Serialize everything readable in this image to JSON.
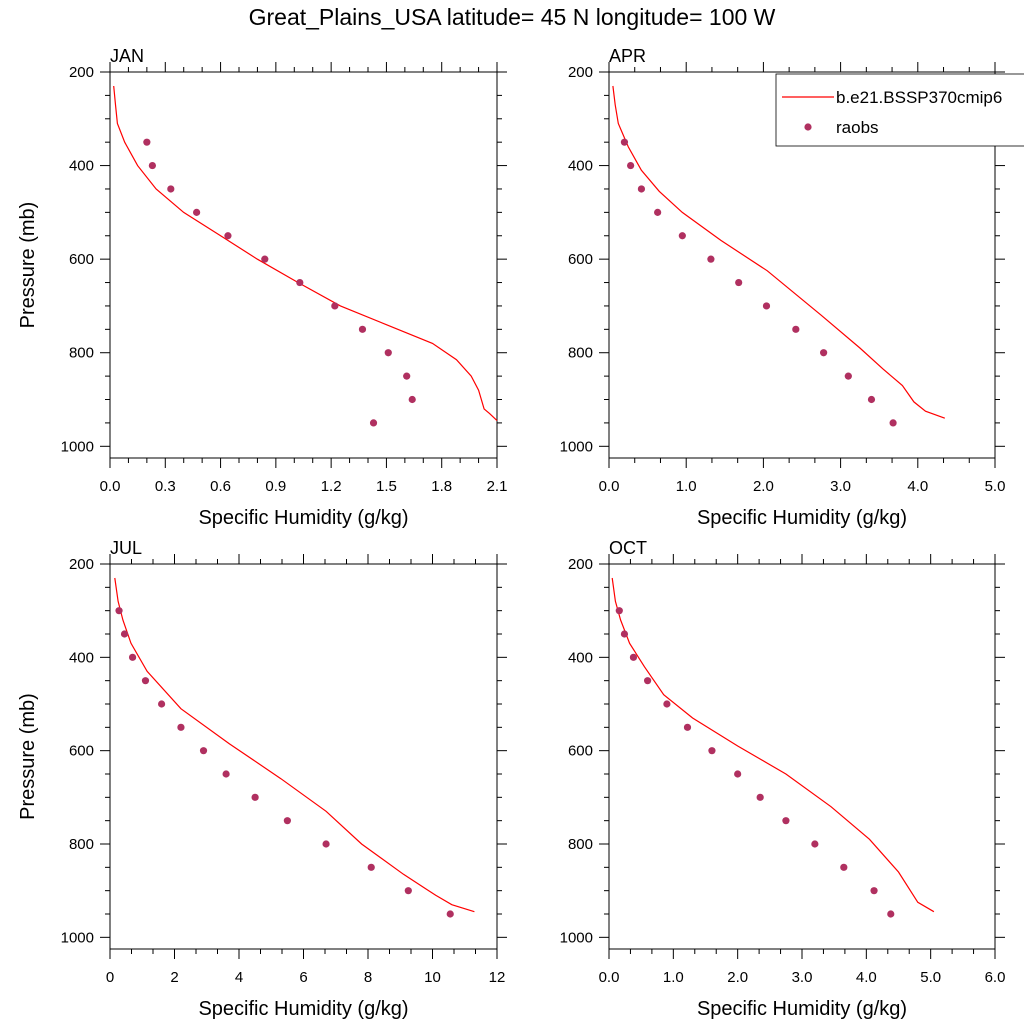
{
  "title": "Great_Plains_USA  latitude= 45 N longitude= 100 W",
  "legend": {
    "model_label": "b.e21.BSSP370cmip6",
    "obs_label": "raobs"
  },
  "colors": {
    "model": "#ff0000",
    "obs": "#b03060"
  },
  "chart_data": [
    {
      "type": "line",
      "panel": "JAN",
      "xlabel": "Specific Humidity (g/kg)",
      "ylabel": "Pressure (mb)",
      "xlim": [
        0,
        2.1
      ],
      "ylim": [
        200,
        1025
      ],
      "y_inverted": true,
      "x_ticks": [
        0,
        0.3,
        0.6,
        0.9,
        1.2,
        1.5,
        1.8,
        2.1
      ],
      "x_tick_labels": [
        "0.0",
        "0.3",
        "0.6",
        "0.9",
        "1.2",
        "1.5",
        "1.8",
        "2.1"
      ],
      "y_ticks": [
        200,
        400,
        600,
        800,
        1000
      ],
      "series": [
        {
          "name": "b.e21.BSSP370cmip6",
          "kind": "line",
          "x": [
            0.02,
            0.03,
            0.04,
            0.08,
            0.15,
            0.25,
            0.4,
            0.6,
            0.8,
            1.02,
            1.25,
            1.5,
            1.75,
            1.88,
            1.96,
            2.0,
            2.03,
            2.06,
            2.1
          ],
          "y": [
            230,
            270,
            310,
            350,
            400,
            450,
            500,
            550,
            600,
            650,
            700,
            740,
            780,
            815,
            850,
            880,
            920,
            930,
            945
          ]
        },
        {
          "name": "raobs",
          "kind": "scatter",
          "x": [
            0.2,
            0.23,
            0.33,
            0.47,
            0.64,
            0.84,
            1.03,
            1.22,
            1.37,
            1.51,
            1.61,
            1.64,
            1.43
          ],
          "y": [
            350,
            400,
            450,
            500,
            550,
            600,
            650,
            700,
            750,
            800,
            850,
            900,
            950
          ]
        }
      ]
    },
    {
      "type": "line",
      "panel": "APR",
      "xlabel": "Specific Humidity (g/kg)",
      "ylabel": "",
      "xlim": [
        0,
        5.0
      ],
      "ylim": [
        200,
        1025
      ],
      "y_inverted": true,
      "x_ticks": [
        0,
        1,
        2,
        3,
        4,
        5
      ],
      "x_tick_labels": [
        "0.0",
        "1.0",
        "2.0",
        "3.0",
        "4.0",
        "5.0"
      ],
      "y_ticks": [
        200,
        400,
        600,
        800,
        1000
      ],
      "series": [
        {
          "name": "b.e21.BSSP370cmip6",
          "kind": "line",
          "x": [
            0.05,
            0.08,
            0.12,
            0.25,
            0.42,
            0.65,
            0.95,
            1.45,
            2.05,
            2.75,
            3.25,
            3.55,
            3.8,
            3.95,
            4.1,
            4.35
          ],
          "y": [
            230,
            270,
            310,
            360,
            410,
            455,
            500,
            560,
            625,
            720,
            790,
            835,
            870,
            905,
            925,
            940
          ]
        },
        {
          "name": "raobs",
          "kind": "scatter",
          "x": [
            0.2,
            0.28,
            0.42,
            0.63,
            0.95,
            1.32,
            1.68,
            2.04,
            2.42,
            2.78,
            3.1,
            3.4,
            3.68
          ],
          "y": [
            350,
            400,
            450,
            500,
            550,
            600,
            650,
            700,
            750,
            800,
            850,
            900,
            950
          ]
        }
      ]
    },
    {
      "type": "line",
      "panel": "JUL",
      "xlabel": "Specific Humidity (g/kg)",
      "ylabel": "Pressure (mb)",
      "xlim": [
        0,
        12
      ],
      "ylim": [
        200,
        1025
      ],
      "y_inverted": true,
      "x_ticks": [
        0,
        2,
        4,
        6,
        8,
        10,
        12
      ],
      "x_tick_labels": [
        "0",
        "2",
        "4",
        "6",
        "8",
        "10",
        "12"
      ],
      "y_ticks": [
        200,
        400,
        600,
        800,
        1000
      ],
      "series": [
        {
          "name": "b.e21.BSSP370cmip6",
          "kind": "line",
          "x": [
            0.15,
            0.25,
            0.4,
            0.65,
            1.15,
            2.2,
            3.7,
            5.3,
            6.7,
            7.8,
            9.1,
            10.1,
            10.6,
            11.3
          ],
          "y": [
            230,
            280,
            320,
            370,
            430,
            510,
            585,
            660,
            730,
            800,
            865,
            910,
            930,
            945
          ]
        },
        {
          "name": "raobs",
          "kind": "scatter",
          "x": [
            0.28,
            0.45,
            0.7,
            1.1,
            1.6,
            2.2,
            2.9,
            3.6,
            4.5,
            5.5,
            6.7,
            8.1,
            9.25,
            10.55
          ],
          "y": [
            300,
            350,
            400,
            450,
            500,
            550,
            600,
            650,
            700,
            750,
            800,
            850,
            900,
            950
          ]
        }
      ]
    },
    {
      "type": "line",
      "panel": "OCT",
      "xlabel": "Specific Humidity (g/kg)",
      "ylabel": "",
      "xlim": [
        0,
        6.0
      ],
      "ylim": [
        200,
        1025
      ],
      "y_inverted": true,
      "x_ticks": [
        0,
        1,
        2,
        3,
        4,
        5,
        6
      ],
      "x_tick_labels": [
        "0.0",
        "1.0",
        "2.0",
        "3.0",
        "4.0",
        "5.0",
        "6.0"
      ],
      "y_ticks": [
        200,
        400,
        600,
        800,
        1000
      ],
      "series": [
        {
          "name": "b.e21.BSSP370cmip6",
          "kind": "line",
          "x": [
            0.05,
            0.1,
            0.18,
            0.32,
            0.55,
            0.85,
            1.3,
            2.0,
            2.75,
            3.45,
            4.05,
            4.5,
            4.8,
            5.05
          ],
          "y": [
            230,
            280,
            320,
            370,
            420,
            480,
            530,
            590,
            650,
            720,
            790,
            860,
            925,
            945
          ]
        },
        {
          "name": "raobs",
          "kind": "scatter",
          "x": [
            0.16,
            0.24,
            0.38,
            0.6,
            0.9,
            1.22,
            1.6,
            2.0,
            2.35,
            2.75,
            3.2,
            3.65,
            4.12,
            4.38
          ],
          "y": [
            300,
            350,
            400,
            450,
            500,
            550,
            600,
            650,
            700,
            750,
            800,
            850,
            900,
            950
          ]
        }
      ]
    }
  ]
}
